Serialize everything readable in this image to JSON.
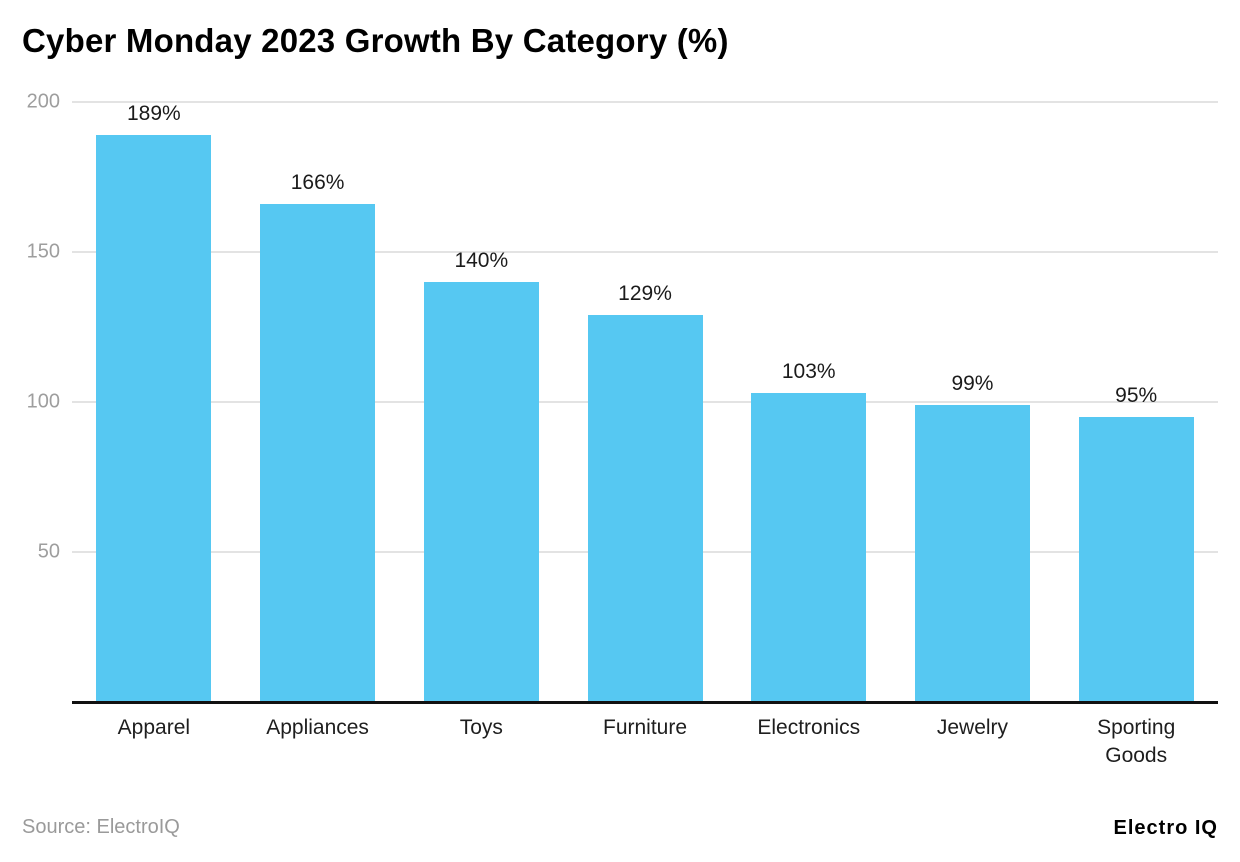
{
  "title": "Cyber Monday 2023 Growth By Category (%)",
  "chart_data": {
    "type": "bar",
    "title": "Cyber Monday 2023 Growth By Category (%)",
    "categories": [
      "Apparel",
      "Appliances",
      "Toys",
      "Furniture",
      "Electronics",
      "Jewelry",
      "Sporting Goods"
    ],
    "values": [
      189,
      166,
      140,
      129,
      103,
      99,
      95
    ],
    "value_labels": [
      "189%",
      "166%",
      "140%",
      "129%",
      "103%",
      "99%",
      "95%"
    ],
    "xlabel": "",
    "ylabel": "",
    "ylim": [
      0,
      200
    ],
    "yticks": [
      50,
      100,
      150,
      200
    ],
    "grid": true,
    "legend": false,
    "bar_color": "#56C8F2"
  },
  "colors": {
    "bar": "#56C8F2",
    "grid": "#E3E3E3",
    "tick_label": "#9E9E9E",
    "axis_line": "#111111",
    "value_label": "#1B1B1B",
    "category_label": "#1E1E1E",
    "source_text": "#9A9A9A",
    "brand_text": "#000000"
  },
  "footer": {
    "source": "Source: ElectroIQ",
    "brand": "Electro IQ"
  }
}
